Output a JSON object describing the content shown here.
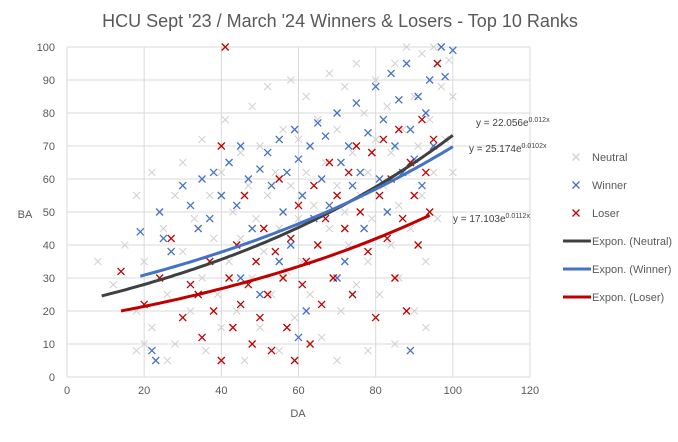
{
  "chart_data": {
    "type": "scatter",
    "title": "HCU Sept '23 / March '24 Winners & Losers - Top 10 Ranks",
    "xlabel": "DA",
    "ylabel": "BA",
    "xlim": [
      0,
      120
    ],
    "ylim": [
      0,
      100
    ],
    "xticks": [
      0,
      20,
      40,
      60,
      80,
      100,
      120
    ],
    "yticks": [
      0,
      10,
      20,
      30,
      40,
      50,
      60,
      70,
      80,
      90,
      100
    ],
    "grid": true,
    "legend_position": "right",
    "series": [
      {
        "name": "Neutral",
        "marker": "x",
        "color": "#d0d0d0",
        "points": [
          [
            8,
            35
          ],
          [
            12,
            28
          ],
          [
            15,
            40
          ],
          [
            18,
            20
          ],
          [
            18,
            55
          ],
          [
            20,
            35
          ],
          [
            22,
            62
          ],
          [
            22,
            15
          ],
          [
            25,
            45
          ],
          [
            26,
            25
          ],
          [
            28,
            55
          ],
          [
            28,
            10
          ],
          [
            30,
            38
          ],
          [
            30,
            65
          ],
          [
            32,
            20
          ],
          [
            33,
            48
          ],
          [
            35,
            30
          ],
          [
            35,
            72
          ],
          [
            36,
            8
          ],
          [
            37,
            55
          ],
          [
            38,
            42
          ],
          [
            39,
            25
          ],
          [
            40,
            62
          ],
          [
            40,
            15
          ],
          [
            41,
            78
          ],
          [
            42,
            35
          ],
          [
            43,
            50
          ],
          [
            44,
            20
          ],
          [
            45,
            68
          ],
          [
            45,
            42
          ],
          [
            46,
            5
          ],
          [
            47,
            58
          ],
          [
            48,
            30
          ],
          [
            48,
            82
          ],
          [
            49,
            48
          ],
          [
            50,
            15
          ],
          [
            50,
            70
          ],
          [
            51,
            38
          ],
          [
            52,
            55
          ],
          [
            52,
            88
          ],
          [
            53,
            25
          ],
          [
            54,
            62
          ],
          [
            55,
            45
          ],
          [
            55,
            8
          ],
          [
            56,
            75
          ],
          [
            57,
            32
          ],
          [
            58,
            58
          ],
          [
            58,
            90
          ],
          [
            59,
            18
          ],
          [
            60,
            48
          ],
          [
            60,
            72
          ],
          [
            61,
            35
          ],
          [
            62,
            62
          ],
          [
            62,
            85
          ],
          [
            63,
            25
          ],
          [
            64,
            52
          ],
          [
            65,
            40
          ],
          [
            65,
            78
          ],
          [
            66,
            12
          ],
          [
            67,
            65
          ],
          [
            68,
            45
          ],
          [
            68,
            92
          ],
          [
            69,
            30
          ],
          [
            70,
            58
          ],
          [
            70,
            75
          ],
          [
            71,
            20
          ],
          [
            72,
            50
          ],
          [
            72,
            88
          ],
          [
            73,
            40
          ],
          [
            74,
            68
          ],
          [
            75,
            28
          ],
          [
            75,
            95
          ],
          [
            76,
            55
          ],
          [
            77,
            80
          ],
          [
            78,
            35
          ],
          [
            78,
            62
          ],
          [
            79,
            48
          ],
          [
            80,
            72
          ],
          [
            80,
            90
          ],
          [
            81,
            25
          ],
          [
            82,
            58
          ],
          [
            83,
            82
          ],
          [
            84,
            40
          ],
          [
            84,
            68
          ],
          [
            85,
            95
          ],
          [
            86,
            52
          ],
          [
            86,
            30
          ],
          [
            87,
            75
          ],
          [
            88,
            62
          ],
          [
            88,
            100
          ],
          [
            89,
            45
          ],
          [
            90,
            85
          ],
          [
            90,
            20
          ],
          [
            91,
            70
          ],
          [
            92,
            55
          ],
          [
            92,
            98
          ],
          [
            93,
            35
          ],
          [
            94,
            78
          ],
          [
            95,
            62
          ],
          [
            95,
            100
          ],
          [
            96,
            48
          ],
          [
            97,
            88
          ],
          [
            98,
            72
          ],
          [
            99,
            96
          ],
          [
            100,
            85
          ],
          [
            100,
            62
          ],
          [
            93,
            15
          ],
          [
            85,
            10
          ],
          [
            78,
            8
          ],
          [
            70,
            5
          ],
          [
            26,
            5
          ],
          [
            20,
            10
          ],
          [
            18,
            8
          ]
        ]
      },
      {
        "name": "Winner",
        "marker": "x",
        "color": "#4472c4",
        "points": [
          [
            19,
            44
          ],
          [
            22,
            8
          ],
          [
            23,
            5
          ],
          [
            24,
            50
          ],
          [
            25,
            42
          ],
          [
            27,
            38
          ],
          [
            30,
            58
          ],
          [
            32,
            52
          ],
          [
            34,
            45
          ],
          [
            35,
            60
          ],
          [
            37,
            48
          ],
          [
            38,
            62
          ],
          [
            40,
            55
          ],
          [
            42,
            65
          ],
          [
            44,
            52
          ],
          [
            45,
            70
          ],
          [
            47,
            60
          ],
          [
            48,
            45
          ],
          [
            50,
            63
          ],
          [
            52,
            68
          ],
          [
            53,
            58
          ],
          [
            55,
            72
          ],
          [
            56,
            50
          ],
          [
            57,
            62
          ],
          [
            58,
            40
          ],
          [
            59,
            75
          ],
          [
            60,
            66
          ],
          [
            61,
            55
          ],
          [
            62,
            20
          ],
          [
            63,
            70
          ],
          [
            64,
            48
          ],
          [
            65,
            77
          ],
          [
            66,
            60
          ],
          [
            67,
            73
          ],
          [
            68,
            52
          ],
          [
            70,
            80
          ],
          [
            71,
            65
          ],
          [
            72,
            35
          ],
          [
            73,
            70
          ],
          [
            74,
            58
          ],
          [
            75,
            83
          ],
          [
            76,
            62
          ],
          [
            77,
            45
          ],
          [
            78,
            74
          ],
          [
            79,
            68
          ],
          [
            80,
            88
          ],
          [
            81,
            60
          ],
          [
            82,
            78
          ],
          [
            83,
            50
          ],
          [
            84,
            92
          ],
          [
            85,
            70
          ],
          [
            86,
            84
          ],
          [
            87,
            62
          ],
          [
            88,
            95
          ],
          [
            89,
            8
          ],
          [
            89,
            75
          ],
          [
            90,
            66
          ],
          [
            91,
            85
          ],
          [
            92,
            58
          ],
          [
            93,
            80
          ],
          [
            94,
            90
          ],
          [
            95,
            70
          ],
          [
            97,
            100
          ],
          [
            98,
            91
          ],
          [
            100,
            99
          ],
          [
            60,
            12
          ],
          [
            50,
            25
          ],
          [
            45,
            30
          ],
          [
            70,
            30
          ],
          [
            55,
            35
          ]
        ]
      },
      {
        "name": "Loser",
        "marker": "x",
        "color": "#c00000",
        "points": [
          [
            14,
            32
          ],
          [
            20,
            22
          ],
          [
            24,
            30
          ],
          [
            27,
            42
          ],
          [
            30,
            18
          ],
          [
            32,
            28
          ],
          [
            34,
            25
          ],
          [
            35,
            12
          ],
          [
            37,
            35
          ],
          [
            38,
            20
          ],
          [
            40,
            5
          ],
          [
            41,
            100
          ],
          [
            40,
            70
          ],
          [
            42,
            30
          ],
          [
            43,
            15
          ],
          [
            44,
            40
          ],
          [
            45,
            22
          ],
          [
            46,
            55
          ],
          [
            47,
            28
          ],
          [
            48,
            10
          ],
          [
            49,
            35
          ],
          [
            50,
            18
          ],
          [
            51,
            45
          ],
          [
            52,
            25
          ],
          [
            53,
            8
          ],
          [
            54,
            38
          ],
          [
            55,
            60
          ],
          [
            56,
            30
          ],
          [
            57,
            15
          ],
          [
            58,
            42
          ],
          [
            59,
            5
          ],
          [
            60,
            52
          ],
          [
            61,
            28
          ],
          [
            62,
            35
          ],
          [
            63,
            10
          ],
          [
            64,
            58
          ],
          [
            65,
            40
          ],
          [
            66,
            22
          ],
          [
            67,
            48
          ],
          [
            68,
            65
          ],
          [
            69,
            30
          ],
          [
            70,
            55
          ],
          [
            72,
            45
          ],
          [
            73,
            62
          ],
          [
            74,
            25
          ],
          [
            75,
            70
          ],
          [
            76,
            50
          ],
          [
            78,
            38
          ],
          [
            79,
            68
          ],
          [
            80,
            18
          ],
          [
            81,
            55
          ],
          [
            82,
            72
          ],
          [
            83,
            42
          ],
          [
            84,
            60
          ],
          [
            85,
            30
          ],
          [
            86,
            75
          ],
          [
            87,
            48
          ],
          [
            88,
            20
          ],
          [
            89,
            65
          ],
          [
            90,
            55
          ],
          [
            91,
            40
          ],
          [
            92,
            78
          ],
          [
            93,
            62
          ],
          [
            94,
            50
          ],
          [
            95,
            72
          ],
          [
            96,
            95
          ]
        ]
      }
    ],
    "trendlines": [
      {
        "name": "Expon. (Neutral)",
        "series": "Neutral",
        "type": "exponential",
        "a": 22.056,
        "b": 0.012,
        "x_range": [
          9,
          100
        ],
        "color": "#404040",
        "equation_base": "y = 22.056e",
        "equation_exp": "0.012x"
      },
      {
        "name": "Expon. (Winner)",
        "series": "Winner",
        "type": "exponential",
        "a": 25.174,
        "b": 0.0102,
        "x_range": [
          19,
          100
        ],
        "color": "#4472c4",
        "equation_base": "y = 25.174e",
        "equation_exp": "0.0102x"
      },
      {
        "name": "Expon. (Loser)",
        "series": "Loser",
        "type": "exponential",
        "a": 17.103,
        "b": 0.0112,
        "x_range": [
          14,
          94
        ],
        "color": "#c00000",
        "equation_base": "y = 17.103e",
        "equation_exp": "0.0112x"
      }
    ]
  }
}
